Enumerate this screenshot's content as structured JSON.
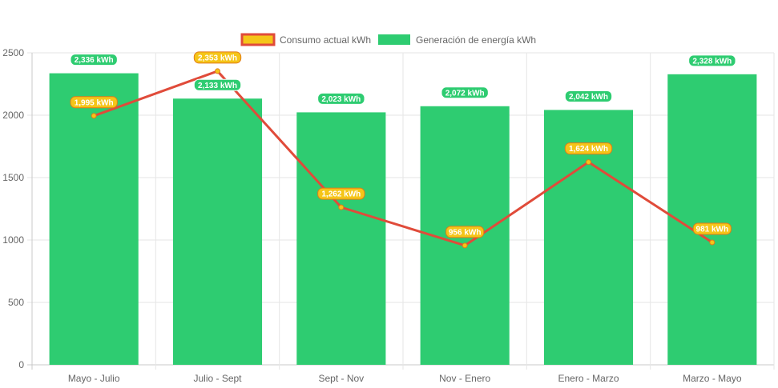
{
  "chart_data": {
    "type": "bar",
    "categories": [
      "Mayo - Julio",
      "Julio - Sept",
      "Sept - Nov",
      "Nov - Enero",
      "Enero - Marzo",
      "Marzo - Mayo"
    ],
    "series": [
      {
        "name": "Consumo actual kWh",
        "type": "line",
        "values": [
          1995,
          2353,
          1262,
          956,
          1624,
          981
        ],
        "labels": [
          "1,995 kWh",
          "2,353 kWh",
          "1,262 kWh",
          "956 kWh",
          "1,624 kWh",
          "981 kWh"
        ],
        "color": "#e04b3a",
        "fill": "#f5c518"
      },
      {
        "name": "Generación de energía kWh",
        "type": "bar",
        "values": [
          2336,
          2133,
          2023,
          2072,
          2042,
          2328
        ],
        "labels": [
          "2,336 kWh",
          "2,133 kWh",
          "2,023 kWh",
          "2,072 kWh",
          "2,042 kWh",
          "2,328 kWh"
        ],
        "color": "#2ecc71"
      }
    ],
    "y_ticks": [
      "0",
      "500",
      "1000",
      "1500",
      "2000",
      "2500"
    ],
    "ylim": [
      0,
      2500
    ],
    "grid": true,
    "legend": "top-center",
    "title": "",
    "xlabel": "",
    "ylabel": ""
  }
}
